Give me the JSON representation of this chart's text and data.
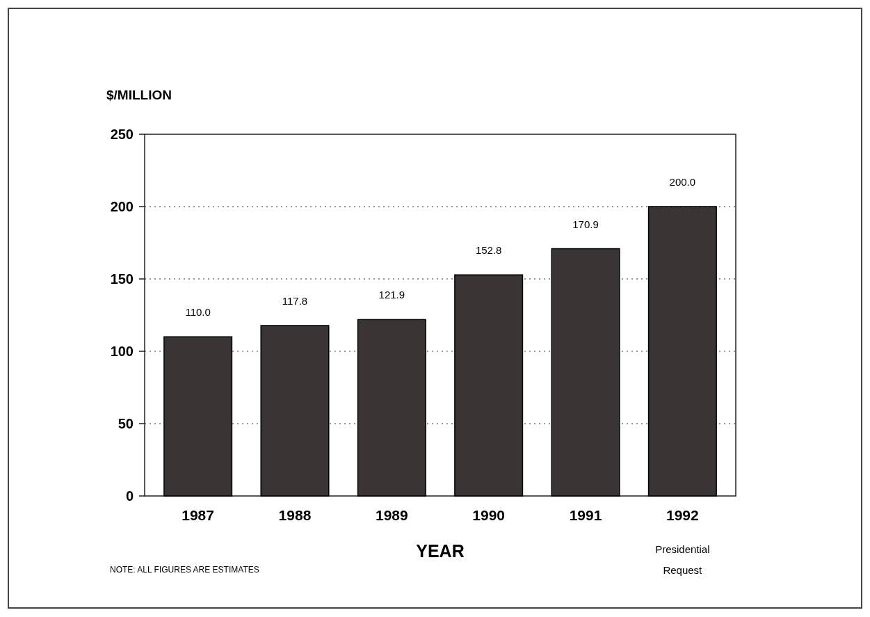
{
  "chart_data": {
    "type": "bar",
    "ylabel": "$/MILLION",
    "xlabel": "YEAR",
    "categories": [
      "1987",
      "1988",
      "1989",
      "1990",
      "1991",
      "1992"
    ],
    "values": [
      110.0,
      117.8,
      121.9,
      152.8,
      170.9,
      200.0
    ],
    "value_labels": [
      "110.0",
      "117.8",
      "121.9",
      "152.8",
      "170.9",
      "200.0"
    ],
    "color": "#3b3434",
    "ylim": [
      0,
      250
    ],
    "yticks": [
      0,
      50,
      100,
      150,
      200,
      250
    ],
    "grid": "y",
    "annotations": [
      "Presidential Request",
      "NOTE:  ALL FIGURES ARE ESTIMATES"
    ]
  }
}
